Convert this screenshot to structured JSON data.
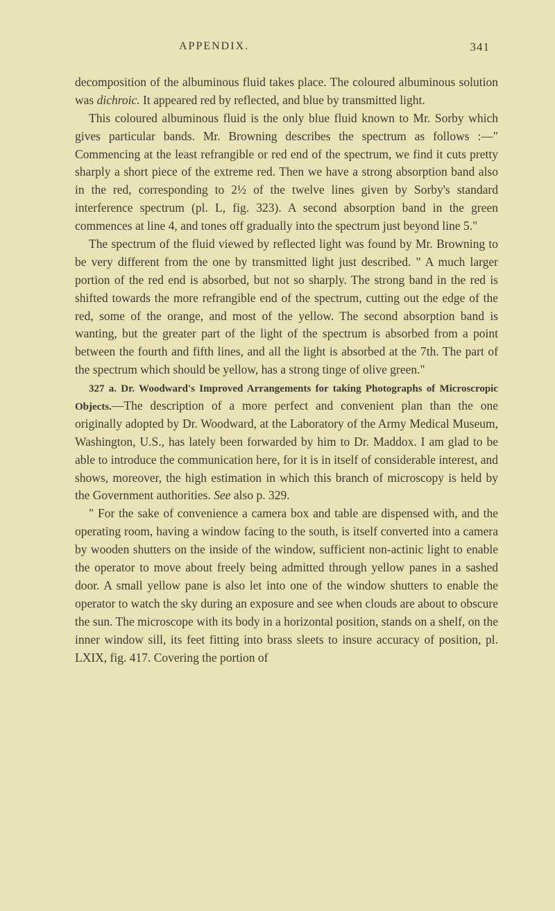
{
  "header": {
    "title": "APPENDIX.",
    "page_number": "341"
  },
  "paragraphs": {
    "p1": "decomposition of the albuminous fluid takes place. The coloured albuminous solution was ",
    "p1_italic": "dichroic.",
    "p1_cont": " It appeared red by reflected, and blue by transmitted light.",
    "p2": "This coloured albuminous fluid is the only blue fluid known to Mr. Sorby which gives particular bands. Mr. Browning describes the spectrum as follows :—\" Commencing at the least refrangible or red end of the spectrum, we find it cuts pretty sharply a short piece of the extreme red. Then we have a strong absorption band also in the red, corresponding to 2½ of the twelve lines given by Sorby's standard interference spectrum (pl. L, fig. 323). A second absorption band in the green commences at line 4, and tones off gradually into the spectrum just beyond line 5.\"",
    "p3": "The spectrum of the fluid viewed by reflected light was found by Mr. Browning to be very different from the one by transmitted light just described. \" A much larger portion of the red end is absorbed, but not so sharply. The strong band in the red is shifted towards the more refrangible end of the spectrum, cutting out the edge of the red, some of the orange, and most of the yellow. The second absorption band is wanting, but the greater part of the light of the spectrum is absorbed from a point between the fourth and fifth lines, and all the light is absorbed at the 7th. The part of the spectrum which should be yellow, has a strong tinge of olive green.\"",
    "p4_bold": "327 a. Dr. Woodward's Improved Arrangements for taking Photographs of Microscropic Objects.",
    "p4_cont": "—The description of a more perfect and convenient plan than the one originally adopted by Dr. Woodward, at the Laboratory of the Army Medical Museum, Washington, U.S., has lately been forwarded by him to Dr. Maddox. I am glad to be able to introduce the communication here, for it is in itself of considerable interest, and shows, moreover, the high estimation in which this branch of microscopy is held by the Government authorities. ",
    "p4_italic": "See",
    "p4_cont2": " also p. 329.",
    "p5": "\" For the sake of convenience a camera box and table are dispensed with, and the operating room, having a window facing to the south, is itself converted into a camera by wooden shutters on the inside of the window, sufficient non-actinic light to enable the operator to move about freely being admitted through yellow panes in a sashed door. A small yellow pane is also let into one of the window shutters to enable the operator to watch the sky during an exposure and see when clouds are about to obscure the sun. The microscope with its body in a horizontal position, stands on a shelf, on the inner window sill, its feet fitting into brass sleets to insure accuracy of position, pl. LXIX, fig. 417. Covering the portion of"
  },
  "styling": {
    "background_color": "#e8e4b8",
    "text_color": "#3a3a2a",
    "body_font_size": 17.5,
    "line_height": 1.48,
    "header_font_size": 16,
    "bold_font_size": 15
  }
}
